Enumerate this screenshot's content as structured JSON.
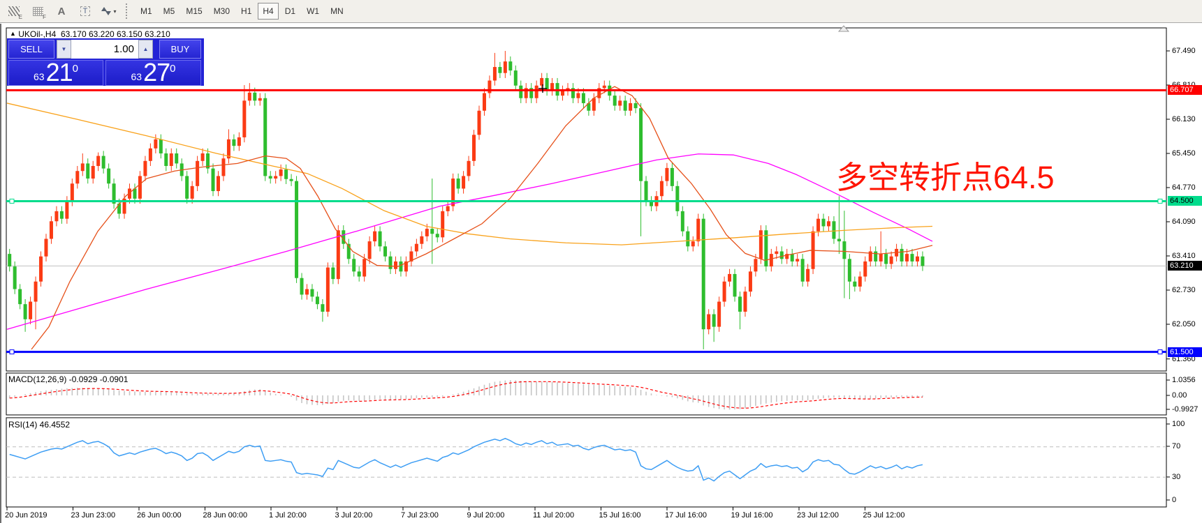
{
  "toolbar": {
    "icons": [
      {
        "name": "indicators-icon",
        "sub": "E",
        "type": "hatch"
      },
      {
        "name": "grid-icon",
        "sub": "F",
        "type": "grid"
      },
      {
        "name": "font-icon",
        "sub": "",
        "type": "A"
      },
      {
        "name": "text-label-icon",
        "sub": "",
        "type": "T"
      },
      {
        "name": "cursor-arrows-icon",
        "sub": "",
        "type": "arrows",
        "caret": "▾"
      }
    ],
    "timeframes": [
      {
        "label": "M1"
      },
      {
        "label": "M5"
      },
      {
        "label": "M15"
      },
      {
        "label": "M30"
      },
      {
        "label": "H1"
      },
      {
        "label": "H4"
      },
      {
        "label": "D1"
      },
      {
        "label": "W1"
      },
      {
        "label": "MN"
      }
    ],
    "active_timeframe": "H4"
  },
  "header": {
    "symbol_marker": "▲",
    "symbol": "UKOil-,H4",
    "ohlc": "63.170 63.220 63.150 63.210"
  },
  "trade_panel": {
    "sell_label": "SELL",
    "buy_label": "BUY",
    "volume": "1.00",
    "spin_down": "▼",
    "spin_up": "▲",
    "sell_price": {
      "small": "63",
      "big": "21",
      "sup": "0"
    },
    "buy_price": {
      "small": "63",
      "big": "27",
      "sup": "0"
    }
  },
  "annotation": {
    "text": "多空转折点64.5",
    "color": "#FF1400"
  },
  "macd_panel": {
    "label": "MACD(12,26,9) -0.0929 -0.0901",
    "axis": [
      "1.0356",
      "0.00",
      "-0.9927"
    ]
  },
  "rsi_panel": {
    "label": "RSI(14) 46.4552",
    "axis": [
      "100",
      "70",
      "30",
      "0"
    ]
  },
  "chart_data": {
    "type": "candlestick",
    "symbol": "UKOil-",
    "timeframe": "H4",
    "title": "UKOil- H4 with MACD(12,26,9) and RSI(14)",
    "y_axis_ticks": [
      67.49,
      66.81,
      66.13,
      65.45,
      64.77,
      64.09,
      63.41,
      62.73,
      62.05,
      61.36
    ],
    "x_axis_labels": [
      "20 Jun 2019",
      "23 Jun 23:00",
      "26 Jun 00:00",
      "28 Jun 00:00",
      "1 Jul 20:00",
      "3 Jul 20:00",
      "7 Jul 23:00",
      "9 Jul 20:00",
      "11 Jul 20:00",
      "15 Jul 16:00",
      "17 Jul 16:00",
      "19 Jul 16:00",
      "23 Jul 12:00",
      "25 Jul 12:00"
    ],
    "price_badges": [
      {
        "value": "66.707",
        "bg": "#FE0000",
        "fg": "#FFFFFF",
        "price": 66.707
      },
      {
        "value": "64.500",
        "bg": "#00DC8C",
        "fg": "#000000",
        "price": 64.5
      },
      {
        "value": "63.210",
        "bg": "#000000",
        "fg": "#FFFFFF",
        "price": 63.21
      },
      {
        "value": "61.500",
        "bg": "#0202FE",
        "fg": "#FFFFFF",
        "price": 61.5
      }
    ],
    "hlines": [
      {
        "name": "resistance-line",
        "price": 66.707,
        "color": "#FE0000",
        "width": 3,
        "handles": false
      },
      {
        "name": "pivot-line",
        "price": 64.5,
        "color": "#00DC8C",
        "width": 3,
        "handles": true
      },
      {
        "name": "support-line",
        "price": 61.5,
        "color": "#0202FE",
        "width": 3,
        "handles": true
      },
      {
        "name": "bid-line",
        "price": 63.21,
        "color": "#C0C0C0",
        "width": 1,
        "handles": false
      }
    ],
    "colors": {
      "up": "#FB3B14",
      "down": "#2EBD2E",
      "ma_fast": "#E65019",
      "ma_mid": "#F9A21B",
      "ma_slow": "#FF00FF",
      "macd_hist": "#C6C6C6",
      "macd_signal": "#FF0000",
      "rsi": "#3E9EF4"
    },
    "open_first": 63.45,
    "default_wick": 0.1,
    "closes": [
      63.2,
      62.75,
      62.45,
      62.15,
      62.5,
      62.9,
      63.4,
      63.75,
      64.1,
      64.3,
      64.15,
      64.5,
      64.85,
      65.1,
      65.25,
      64.95,
      65.2,
      65.4,
      65.15,
      64.85,
      64.45,
      64.25,
      64.55,
      64.75,
      64.55,
      65.0,
      65.3,
      65.55,
      65.73,
      65.45,
      65.2,
      65.45,
      65.25,
      65.0,
      64.55,
      64.8,
      65.3,
      65.45,
      65.15,
      64.7,
      65.0,
      65.35,
      65.73,
      65.6,
      65.77,
      66.5,
      66.66,
      66.5,
      66.55,
      65.0,
      64.95,
      65.0,
      65.13,
      64.94,
      64.9,
      62.97,
      62.64,
      62.75,
      62.6,
      62.45,
      62.3,
      63.18,
      62.95,
      63.92,
      63.65,
      63.35,
      63.1,
      63.0,
      63.35,
      63.7,
      63.9,
      63.6,
      63.4,
      63.15,
      63.3,
      63.1,
      63.3,
      63.5,
      63.65,
      63.8,
      63.95,
      63.85,
      63.78,
      64.3,
      64.4,
      64.95,
      64.75,
      65.0,
      65.3,
      65.82,
      66.3,
      66.65,
      66.9,
      67.17,
      67.05,
      67.28,
      67.1,
      66.8,
      66.55,
      66.75,
      66.55,
      66.8,
      66.95,
      66.7,
      66.85,
      66.6,
      66.7,
      66.75,
      66.55,
      66.65,
      66.45,
      66.3,
      66.55,
      66.75,
      66.8,
      66.6,
      66.4,
      66.5,
      66.3,
      66.45,
      66.35,
      64.9,
      64.5,
      64.4,
      64.6,
      64.9,
      65.16,
      64.8,
      64.3,
      63.9,
      63.6,
      63.7,
      64.15,
      61.95,
      62.25,
      62.0,
      62.5,
      62.9,
      63.05,
      62.6,
      62.3,
      62.7,
      63.1,
      63.35,
      63.92,
      63.2,
      63.45,
      63.5,
      63.35,
      63.45,
      63.3,
      63.35,
      62.9,
      63.15,
      63.9,
      64.15,
      64.0,
      64.1,
      63.75,
      63.7,
      63.35,
      62.9,
      62.8,
      63.0,
      63.3,
      63.5,
      63.3,
      63.45,
      63.25,
      63.4,
      63.55,
      63.3,
      63.45,
      63.3,
      63.4,
      63.21
    ],
    "special_wicks": {
      "3": {
        "l": 61.9
      },
      "5": {
        "l": 61.95
      },
      "14": {
        "h": 65.45
      },
      "17": {
        "h": 65.47
      },
      "42": {
        "h": 65.93
      },
      "45": {
        "h": 66.81
      },
      "46": {
        "h": 66.85
      },
      "60": {
        "l": 62.1
      },
      "81": {
        "h": 64.95,
        "l": 63.25
      },
      "93": {
        "h": 67.45
      },
      "95": {
        "h": 67.49
      },
      "121": {
        "l": 63.8
      },
      "133": {
        "l": 61.55
      },
      "135": {
        "l": 61.7
      },
      "140": {
        "l": 61.95
      },
      "159": {
        "h": 64.6,
        "l": 63.45
      },
      "160": {
        "h": 64.31,
        "l": 62.57
      },
      "161": {
        "l": 62.55
      },
      "167": {
        "h": 63.9
      }
    },
    "moving_averages": [
      {
        "name": "ma-slow-magenta",
        "color": "#FF00FF",
        "points": [
          [
            0,
            61.95
          ],
          [
            100,
            62.35
          ],
          [
            200,
            62.75
          ],
          [
            300,
            63.12
          ],
          [
            400,
            63.5
          ],
          [
            500,
            63.9
          ],
          [
            560,
            64.15
          ],
          [
            620,
            64.4
          ],
          [
            700,
            64.62
          ],
          [
            780,
            64.85
          ],
          [
            860,
            65.1
          ],
          [
            930,
            65.32
          ],
          [
            990,
            65.44
          ],
          [
            1040,
            65.42
          ],
          [
            1090,
            65.25
          ],
          [
            1130,
            65.03
          ],
          [
            1180,
            64.7
          ],
          [
            1240,
            64.28
          ],
          [
            1290,
            63.95
          ],
          [
            1325,
            63.7
          ]
        ]
      },
      {
        "name": "ma-mid-orange",
        "color": "#F9A21B",
        "points": [
          [
            0,
            66.45
          ],
          [
            100,
            66.13
          ],
          [
            200,
            65.8
          ],
          [
            300,
            65.45
          ],
          [
            380,
            65.2
          ],
          [
            430,
            65.05
          ],
          [
            480,
            64.75
          ],
          [
            540,
            64.31
          ],
          [
            600,
            64.0
          ],
          [
            660,
            63.85
          ],
          [
            720,
            63.75
          ],
          [
            800,
            63.67
          ],
          [
            880,
            63.63
          ],
          [
            960,
            63.7
          ],
          [
            1040,
            63.77
          ],
          [
            1120,
            63.85
          ],
          [
            1200,
            63.92
          ],
          [
            1270,
            63.97
          ],
          [
            1325,
            64.0
          ]
        ]
      },
      {
        "name": "ma-fast-redorange",
        "color": "#E65019",
        "points": [
          [
            35,
            61.55
          ],
          [
            60,
            62.0
          ],
          [
            90,
            62.9
          ],
          [
            130,
            63.9
          ],
          [
            170,
            64.6
          ],
          [
            200,
            64.95
          ],
          [
            240,
            65.1
          ],
          [
            280,
            65.18
          ],
          [
            330,
            65.25
          ],
          [
            370,
            65.4
          ],
          [
            400,
            65.35
          ],
          [
            420,
            65.15
          ],
          [
            445,
            64.6
          ],
          [
            470,
            63.95
          ],
          [
            495,
            63.5
          ],
          [
            530,
            63.22
          ],
          [
            560,
            63.2
          ],
          [
            600,
            63.45
          ],
          [
            640,
            63.75
          ],
          [
            680,
            64.05
          ],
          [
            720,
            64.55
          ],
          [
            760,
            65.25
          ],
          [
            800,
            66.0
          ],
          [
            840,
            66.55
          ],
          [
            870,
            66.78
          ],
          [
            895,
            66.6
          ],
          [
            920,
            66.15
          ],
          [
            947,
            65.35
          ],
          [
            980,
            64.85
          ],
          [
            1007,
            64.34
          ],
          [
            1030,
            63.83
          ],
          [
            1057,
            63.46
          ],
          [
            1085,
            63.32
          ],
          [
            1115,
            63.42
          ],
          [
            1150,
            63.52
          ],
          [
            1200,
            63.5
          ],
          [
            1250,
            63.45
          ],
          [
            1290,
            63.5
          ],
          [
            1325,
            63.62
          ]
        ]
      }
    ],
    "macd": {
      "label": "MACD(12,26,9)",
      "values_text": "-0.0929 -0.0901",
      "ylim": [
        -0.9927,
        1.0356
      ],
      "histogram": [
        -0.18,
        -0.1,
        0.0,
        0.08,
        0.15,
        0.22,
        0.28,
        0.33,
        0.38,
        0.42,
        0.45,
        0.48,
        0.5,
        0.52,
        0.52,
        0.5,
        0.48,
        0.46,
        0.43,
        0.4,
        0.36,
        0.33,
        0.3,
        0.28,
        0.26,
        0.25,
        0.24,
        0.24,
        0.25,
        0.25,
        0.24,
        0.22,
        0.2,
        0.17,
        0.14,
        0.12,
        0.12,
        0.13,
        0.13,
        0.12,
        0.12,
        0.13,
        0.15,
        0.17,
        0.2,
        0.28,
        0.36,
        0.4,
        0.42,
        0.3,
        0.18,
        0.1,
        0.05,
        0.0,
        -0.1,
        -0.35,
        -0.52,
        -0.6,
        -0.64,
        -0.66,
        -0.65,
        -0.58,
        -0.52,
        -0.42,
        -0.36,
        -0.34,
        -0.35,
        -0.37,
        -0.36,
        -0.32,
        -0.28,
        -0.26,
        -0.27,
        -0.29,
        -0.28,
        -0.27,
        -0.25,
        -0.22,
        -0.19,
        -0.16,
        -0.14,
        -0.12,
        -0.11,
        -0.08,
        -0.02,
        0.06,
        0.15,
        0.25,
        0.36,
        0.48,
        0.6,
        0.72,
        0.83,
        0.92,
        0.97,
        1.01,
        1.03,
        1.02,
        0.99,
        0.96,
        0.94,
        0.93,
        0.93,
        0.92,
        0.91,
        0.89,
        0.86,
        0.84,
        0.82,
        0.8,
        0.77,
        0.74,
        0.72,
        0.71,
        0.7,
        0.68,
        0.65,
        0.62,
        0.59,
        0.56,
        0.5,
        0.38,
        0.25,
        0.13,
        0.03,
        -0.03,
        -0.07,
        -0.12,
        -0.2,
        -0.3,
        -0.4,
        -0.47,
        -0.5,
        -0.68,
        -0.78,
        -0.86,
        -0.92,
        -0.95,
        -0.96,
        -0.95,
        -0.93,
        -0.88,
        -0.8,
        -0.71,
        -0.62,
        -0.55,
        -0.49,
        -0.44,
        -0.4,
        -0.37,
        -0.35,
        -0.34,
        -0.35,
        -0.33,
        -0.28,
        -0.23,
        -0.19,
        -0.16,
        -0.15,
        -0.16,
        -0.19,
        -0.23,
        -0.26,
        -0.27,
        -0.26,
        -0.24,
        -0.21,
        -0.18,
        -0.16,
        -0.14,
        -0.12,
        -0.11,
        -0.1,
        -0.096,
        -0.093,
        -0.0929
      ]
    },
    "rsi": {
      "label": "RSI(14)",
      "value_text": "46.4552",
      "levels": [
        70,
        30
      ],
      "ylim": [
        0,
        100
      ],
      "values": [
        60,
        58,
        56,
        54,
        57,
        60,
        63,
        65,
        67,
        68,
        67,
        70,
        73,
        76,
        78,
        74,
        76,
        77,
        74,
        70,
        62,
        58,
        60,
        62,
        60,
        63,
        65,
        67,
        68,
        65,
        61,
        63,
        61,
        58,
        52,
        55,
        61,
        62,
        58,
        52,
        56,
        60,
        64,
        62,
        64,
        70,
        72,
        70,
        71,
        52,
        51,
        52,
        53,
        51,
        50,
        36,
        34,
        35,
        34,
        33,
        31,
        42,
        40,
        52,
        49,
        46,
        43,
        42,
        46,
        50,
        53,
        49,
        46,
        43,
        46,
        43,
        46,
        49,
        51,
        53,
        55,
        53,
        51,
        56,
        58,
        62,
        60,
        63,
        66,
        70,
        73,
        76,
        78,
        80,
        78,
        81,
        78,
        74,
        72,
        75,
        73,
        76,
        78,
        74,
        76,
        72,
        73,
        74,
        71,
        72,
        68,
        66,
        69,
        71,
        72,
        69,
        66,
        67,
        65,
        66,
        63,
        45,
        41,
        40,
        44,
        48,
        52,
        47,
        43,
        40,
        38,
        39,
        45,
        26,
        29,
        25,
        31,
        36,
        38,
        33,
        28,
        33,
        38,
        41,
        48,
        43,
        45,
        46,
        44,
        45,
        42,
        43,
        37,
        41,
        50,
        53,
        51,
        52,
        47,
        46,
        40,
        35,
        34,
        37,
        41,
        45,
        42,
        44,
        41,
        43,
        46,
        41,
        44,
        42,
        45,
        46.46
      ]
    }
  }
}
